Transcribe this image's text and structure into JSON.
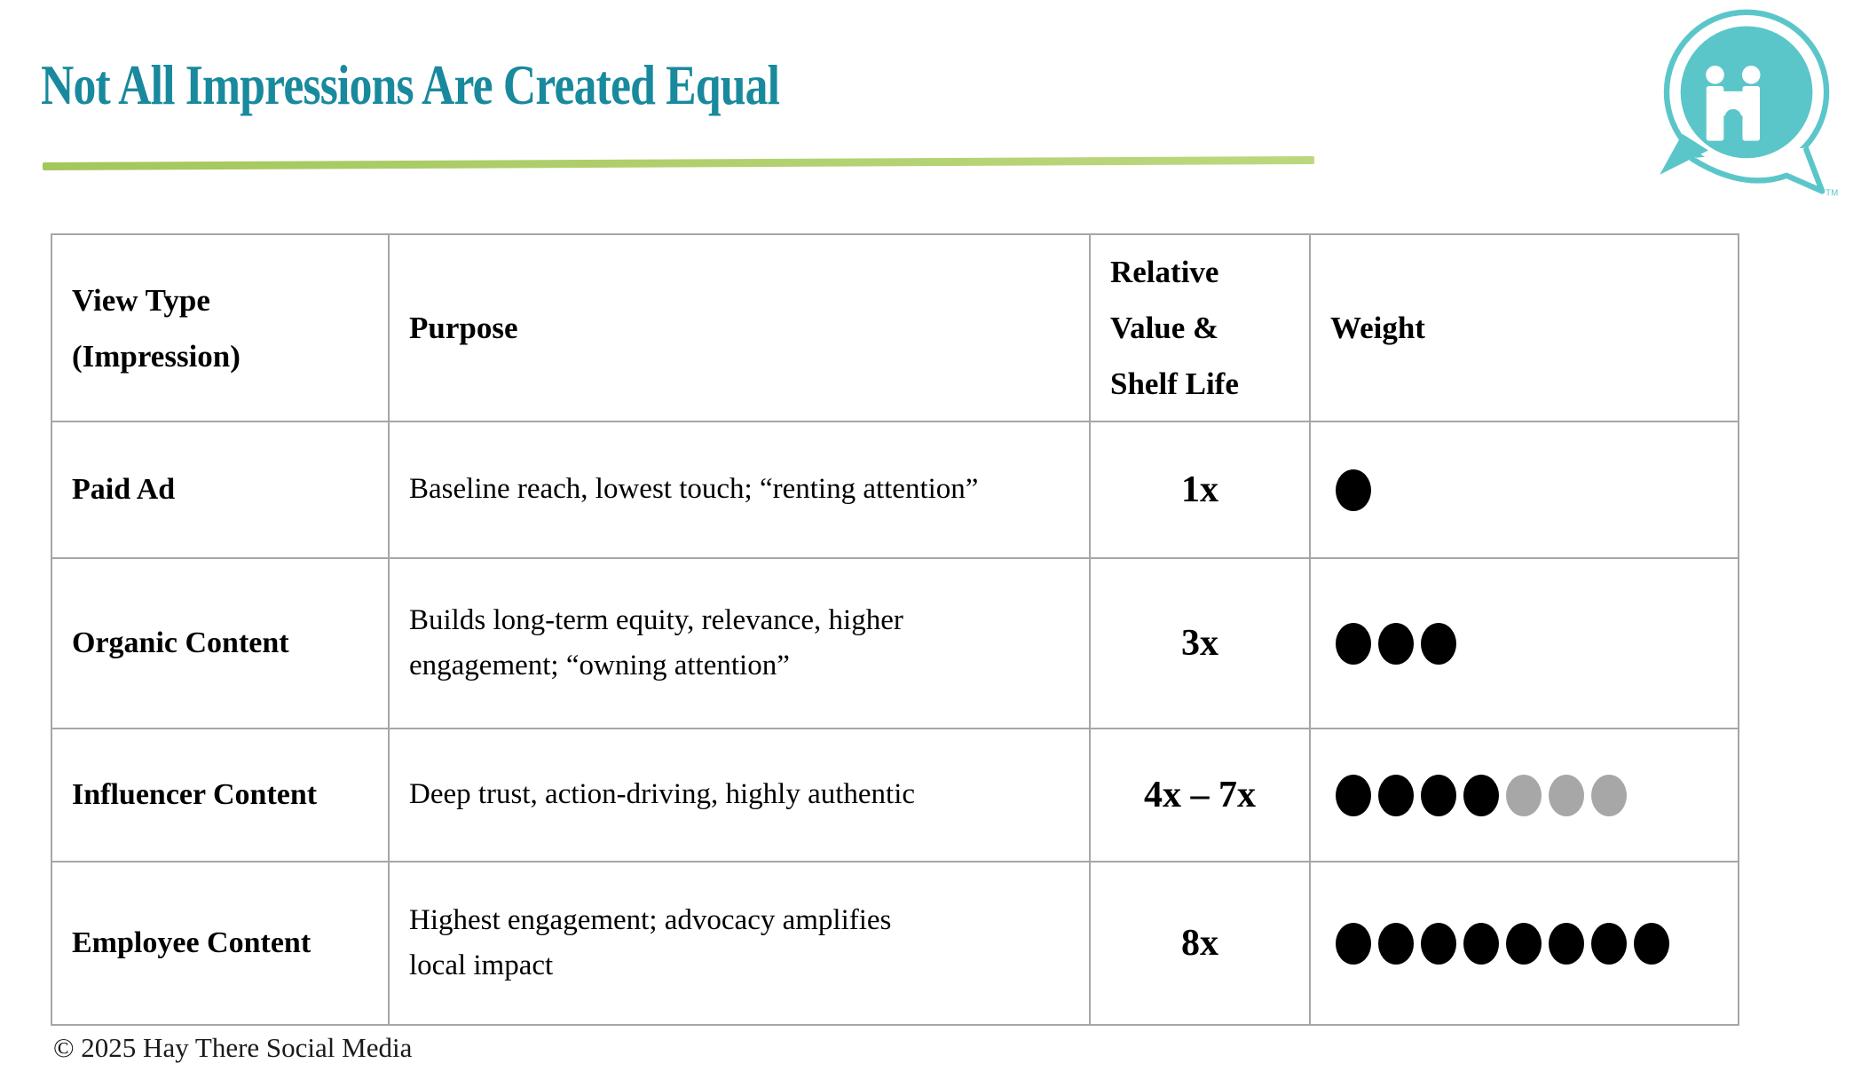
{
  "title": "Not All Impressions Are Created Equal",
  "logo": {
    "name": "hay-there-social-media-logo",
    "trademark": "TM"
  },
  "table": {
    "headers": {
      "view_type": "View Type\n(Impression)",
      "purpose": "Purpose",
      "relative_value": "Relative\nValue &\nShelf Life",
      "weight": "Weight"
    },
    "rows": [
      {
        "view_type": "Paid Ad",
        "purpose": "Baseline reach, lowest touch; “renting attention”",
        "relative_value": "1x",
        "weight_dots": {
          "black": 1,
          "gray": 0
        }
      },
      {
        "view_type": "Organic Content",
        "purpose": "Builds long-term equity, relevance, higher\nengagement; “owning attention”",
        "relative_value": "3x",
        "weight_dots": {
          "black": 3,
          "gray": 0
        }
      },
      {
        "view_type": "Influencer Content",
        "purpose": "Deep trust, action-driving, highly authentic",
        "relative_value": "4x – 7x",
        "weight_dots": {
          "black": 4,
          "gray": 3
        }
      },
      {
        "view_type": "Employee Content",
        "purpose": "Highest engagement; advocacy amplifies\nlocal impact",
        "relative_value": "8x",
        "weight_dots": {
          "black": 8,
          "gray": 0
        }
      }
    ]
  },
  "footer": {
    "copyright": "© 2025 Hay There Social Media"
  },
  "colors": {
    "title_teal": "#19899d",
    "logo_teal": "#5bc6c9",
    "accent_green": "#aecd68",
    "table_border": "#a6a6a6",
    "dot_black": "#000000",
    "dot_gray": "#a7a7a7"
  }
}
